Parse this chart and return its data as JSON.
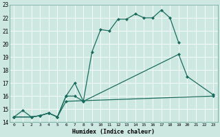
{
  "xlabel": "Humidex (Indice chaleur)",
  "bg_color": "#cce8e0",
  "grid_color": "#b0d8d0",
  "line_color": "#1a6b5e",
  "xlim": [
    -0.5,
    23.5
  ],
  "ylim": [
    14,
    23
  ],
  "xticks": [
    0,
    1,
    2,
    3,
    4,
    5,
    6,
    7,
    8,
    9,
    10,
    11,
    12,
    13,
    14,
    15,
    16,
    17,
    18,
    19,
    20,
    21,
    22,
    23
  ],
  "yticks": [
    14,
    15,
    16,
    17,
    18,
    19,
    20,
    21,
    22,
    23
  ],
  "line1_x": [
    0,
    1,
    2,
    3,
    4,
    5,
    6,
    7,
    8,
    9,
    10,
    11,
    12,
    13,
    14,
    15,
    16,
    17,
    18,
    19
  ],
  "line1_y": [
    14.4,
    14.9,
    14.4,
    14.5,
    14.7,
    14.4,
    16.0,
    17.0,
    15.6,
    19.4,
    21.1,
    21.0,
    21.9,
    21.9,
    22.3,
    22.0,
    22.0,
    22.6,
    22.0,
    20.1
  ],
  "line2_x": [
    0,
    2,
    3,
    4,
    5,
    6,
    7,
    8,
    19,
    20,
    23
  ],
  "line2_y": [
    14.4,
    14.4,
    14.5,
    14.7,
    14.4,
    16.0,
    16.0,
    15.6,
    19.2,
    17.5,
    16.1
  ],
  "line3_x": [
    0,
    2,
    3,
    4,
    5,
    6,
    23
  ],
  "line3_y": [
    14.4,
    14.4,
    14.5,
    14.7,
    14.4,
    15.6,
    16.0
  ]
}
